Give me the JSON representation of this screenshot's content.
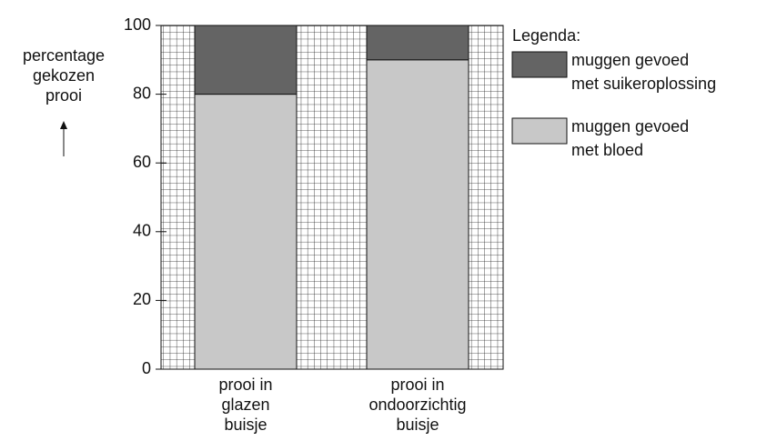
{
  "chart_data": {
    "type": "stacked_bar",
    "y_label": [
      "percentage",
      "gekozen",
      "prooi"
    ],
    "categories": [
      [
        "prooi in",
        "glazen",
        "buisje"
      ],
      [
        "prooi in",
        "ondoorzichtig",
        "buisje"
      ]
    ],
    "legend_title": "Legenda:",
    "series": [
      {
        "name": [
          "muggen gevoed",
          "met bloed"
        ],
        "color": "#c8c8c8",
        "values": [
          80,
          90
        ]
      },
      {
        "name": [
          "muggen gevoed",
          "met suikeroplossing"
        ],
        "color": "#646464",
        "values": [
          20,
          10
        ]
      }
    ],
    "ylim": [
      0,
      100
    ],
    "yticks": [
      0,
      20,
      40,
      60,
      80,
      100
    ],
    "grid": true
  }
}
